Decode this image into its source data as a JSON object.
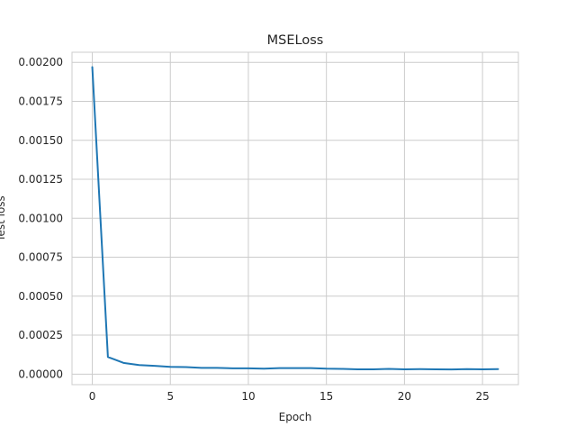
{
  "chart_data": {
    "type": "line",
    "title": "MSELoss",
    "xlabel": "Epoch",
    "ylabel": "Test loss",
    "xlim": [
      -1.3,
      27.3
    ],
    "ylim": [
      -6.75e-05,
      0.002065
    ],
    "xticks": [
      0,
      5,
      10,
      15,
      20,
      25
    ],
    "xtick_labels": [
      "0",
      "5",
      "10",
      "15",
      "20",
      "25"
    ],
    "yticks": [
      0.0,
      0.00025,
      0.0005,
      0.00075,
      0.001,
      0.00125,
      0.0015,
      0.00175,
      0.002
    ],
    "ytick_labels": [
      "0.00000",
      "0.00025",
      "0.00050",
      "0.00075",
      "0.00100",
      "0.00125",
      "0.00150",
      "0.00175",
      "0.00200"
    ],
    "grid": true,
    "legend": false,
    "series": [
      {
        "color": "#1f77b4",
        "x": [
          0,
          1,
          2,
          3,
          4,
          5,
          6,
          7,
          8,
          9,
          10,
          11,
          12,
          13,
          14,
          15,
          16,
          17,
          18,
          19,
          20,
          21,
          22,
          23,
          24,
          25,
          26
        ],
        "y": [
          0.00197,
          0.00011,
          7.2e-05,
          5.8e-05,
          5.3e-05,
          4.7e-05,
          4.5e-05,
          4e-05,
          4e-05,
          3.7e-05,
          3.7e-05,
          3.5e-05,
          3.9e-05,
          3.9e-05,
          3.9e-05,
          3.5e-05,
          3.4e-05,
          3.1e-05,
          3.1e-05,
          3.4e-05,
          3.1e-05,
          3.2e-05,
          3.1e-05,
          3e-05,
          3.2e-05,
          3.1e-05,
          3.2e-05
        ]
      }
    ]
  }
}
